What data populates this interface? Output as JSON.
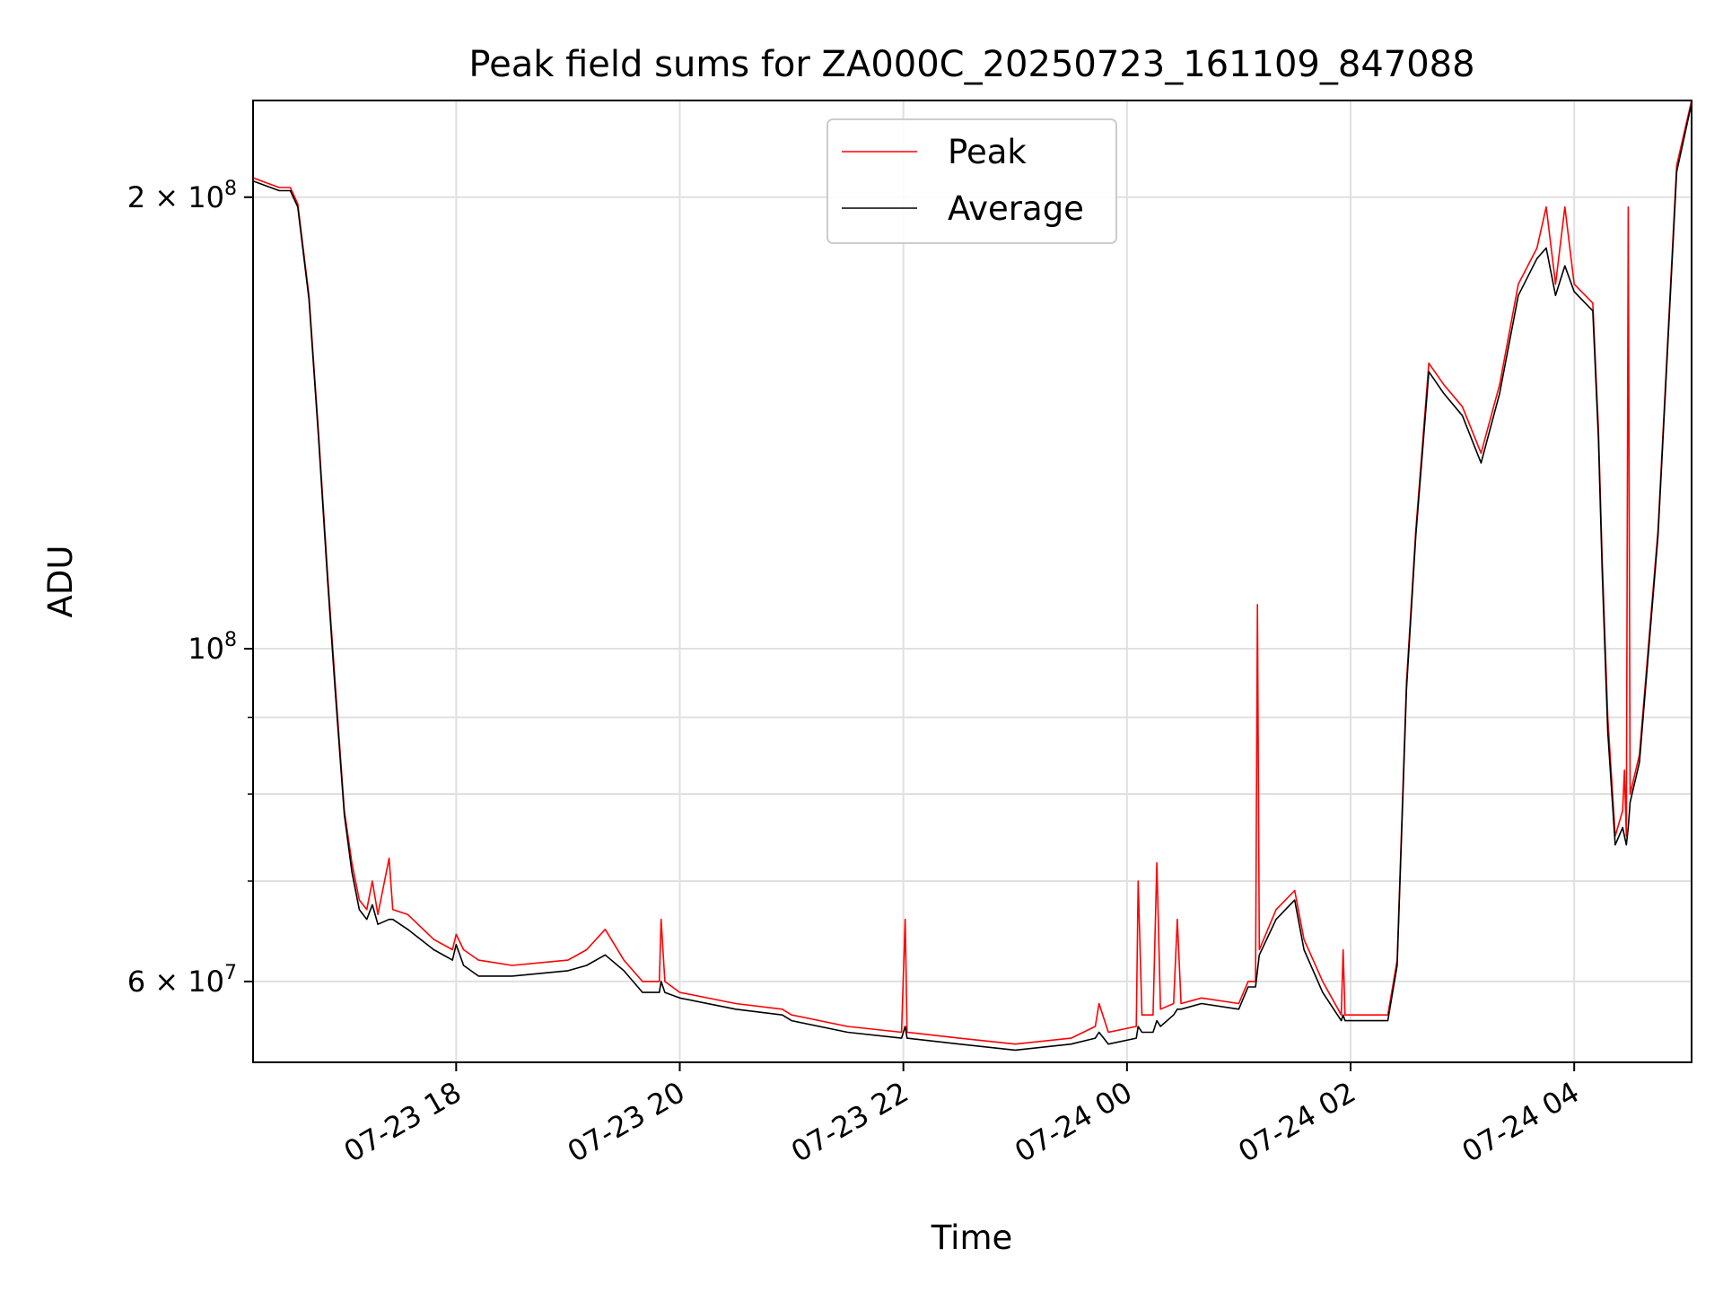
{
  "chart_data": {
    "type": "line",
    "title": "Peak field sums for ZA000C_20250723_161109_847088",
    "xlabel": "Time",
    "ylabel": "ADU",
    "y_scale": "log",
    "grid": true,
    "legend_position": "upper center",
    "xlim": [
      "2025-07-23 16:11",
      "2025-07-24 05:03"
    ],
    "ylim": [
      53000000,
      232000000
    ],
    "x_ticks": [
      {
        "value": "2025-07-23 18:00",
        "label": "07-23 18"
      },
      {
        "value": "2025-07-23 20:00",
        "label": "07-23 20"
      },
      {
        "value": "2025-07-23 22:00",
        "label": "07-23 22"
      },
      {
        "value": "2025-07-24 00:00",
        "label": "07-24 00"
      },
      {
        "value": "2025-07-24 02:00",
        "label": "07-24 02"
      },
      {
        "value": "2025-07-24 04:00",
        "label": "07-24 04"
      }
    ],
    "y_ticks": [
      {
        "value": 60000000,
        "label": "6 × 10",
        "exp": "7"
      },
      {
        "value": 100000000,
        "label": "10",
        "exp": "8"
      },
      {
        "value": 200000000,
        "label": "2 × 10",
        "exp": "8"
      }
    ],
    "y_minor_ticks": [
      70000000,
      80000000,
      90000000
    ],
    "colors": {
      "peak": "#ff0000",
      "average": "#000000",
      "grid": "#e0e0e0"
    },
    "series": [
      {
        "name": "Peak",
        "color": "#ff0000",
        "points": [
          [
            "2025-07-23 16:11",
            206000000
          ],
          [
            "2025-07-23 16:25",
            203000000
          ],
          [
            "2025-07-23 16:31",
            203000000
          ],
          [
            "2025-07-23 16:35",
            198000000
          ],
          [
            "2025-07-23 16:41",
            172000000
          ],
          [
            "2025-07-23 16:46",
            140000000
          ],
          [
            "2025-07-23 16:51",
            112000000
          ],
          [
            "2025-07-23 16:55",
            95000000
          ],
          [
            "2025-07-23 17:00",
            78000000
          ],
          [
            "2025-07-23 17:04",
            72000000
          ],
          [
            "2025-07-23 17:08",
            68000000
          ],
          [
            "2025-07-23 17:12",
            67000000
          ],
          [
            "2025-07-23 17:15",
            70000000
          ],
          [
            "2025-07-23 17:18",
            66500000
          ],
          [
            "2025-07-23 17:24",
            72500000
          ],
          [
            "2025-07-23 17:26",
            67000000
          ],
          [
            "2025-07-23 17:34",
            66500000
          ],
          [
            "2025-07-23 17:48",
            64000000
          ],
          [
            "2025-07-23 17:58",
            63000000
          ],
          [
            "2025-07-23 18:00",
            64500000
          ],
          [
            "2025-07-23 18:04",
            63000000
          ],
          [
            "2025-07-23 18:12",
            62000000
          ],
          [
            "2025-07-23 18:30",
            61500000
          ],
          [
            "2025-07-23 19:00",
            62000000
          ],
          [
            "2025-07-23 19:10",
            63000000
          ],
          [
            "2025-07-23 19:20",
            65000000
          ],
          [
            "2025-07-23 19:30",
            62000000
          ],
          [
            "2025-07-23 19:40",
            60000000
          ],
          [
            "2025-07-23 19:49",
            60000000
          ],
          [
            "2025-07-23 19:50",
            66000000
          ],
          [
            "2025-07-23 19:52",
            60000000
          ],
          [
            "2025-07-23 20:00",
            59000000
          ],
          [
            "2025-07-23 20:30",
            58000000
          ],
          [
            "2025-07-23 20:55",
            57500000
          ],
          [
            "2025-07-23 21:00",
            57000000
          ],
          [
            "2025-07-23 21:30",
            56000000
          ],
          [
            "2025-07-23 21:59",
            55500000
          ],
          [
            "2025-07-23 22:01",
            66000000
          ],
          [
            "2025-07-23 22:02",
            55500000
          ],
          [
            "2025-07-23 22:30",
            55000000
          ],
          [
            "2025-07-23 23:00",
            54500000
          ],
          [
            "2025-07-23 23:30",
            55000000
          ],
          [
            "2025-07-23 23:43",
            56000000
          ],
          [
            "2025-07-23 23:45",
            58000000
          ],
          [
            "2025-07-23 23:50",
            55500000
          ],
          [
            "2025-07-24 00:05",
            56000000
          ],
          [
            "2025-07-24 00:06",
            70000000
          ],
          [
            "2025-07-24 00:08",
            57000000
          ],
          [
            "2025-07-24 00:14",
            57000000
          ],
          [
            "2025-07-24 00:16",
            72000000
          ],
          [
            "2025-07-24 00:18",
            57500000
          ],
          [
            "2025-07-24 00:25",
            58000000
          ],
          [
            "2025-07-24 00:27",
            66000000
          ],
          [
            "2025-07-24 00:29",
            58000000
          ],
          [
            "2025-07-24 00:40",
            58500000
          ],
          [
            "2025-07-24 01:00",
            58000000
          ],
          [
            "2025-07-24 01:05",
            60000000
          ],
          [
            "2025-07-24 01:09",
            60000000
          ],
          [
            "2025-07-24 01:10",
            107000000
          ],
          [
            "2025-07-24 01:11",
            63000000
          ],
          [
            "2025-07-24 01:20",
            67000000
          ],
          [
            "2025-07-24 01:30",
            69000000
          ],
          [
            "2025-07-24 01:35",
            64000000
          ],
          [
            "2025-07-24 01:45",
            60000000
          ],
          [
            "2025-07-24 01:55",
            57000000
          ],
          [
            "2025-07-24 01:56",
            63000000
          ],
          [
            "2025-07-24 01:57",
            57000000
          ],
          [
            "2025-07-24 02:20",
            57000000
          ],
          [
            "2025-07-24 02:25",
            62000000
          ],
          [
            "2025-07-24 02:30",
            95000000
          ],
          [
            "2025-07-24 02:35",
            120000000
          ],
          [
            "2025-07-24 02:42",
            155000000
          ],
          [
            "2025-07-24 02:50",
            150000000
          ],
          [
            "2025-07-24 03:00",
            145000000
          ],
          [
            "2025-07-24 03:10",
            135000000
          ],
          [
            "2025-07-24 03:20",
            150000000
          ],
          [
            "2025-07-24 03:30",
            175000000
          ],
          [
            "2025-07-24 03:40",
            185000000
          ],
          [
            "2025-07-24 03:45",
            197000000
          ],
          [
            "2025-07-24 03:50",
            175000000
          ],
          [
            "2025-07-24 03:55",
            197000000
          ],
          [
            "2025-07-24 04:00",
            175000000
          ],
          [
            "2025-07-24 04:10",
            170000000
          ],
          [
            "2025-07-24 04:13",
            140000000
          ],
          [
            "2025-07-24 04:15",
            115000000
          ],
          [
            "2025-07-24 04:18",
            90000000
          ],
          [
            "2025-07-24 04:22",
            75000000
          ],
          [
            "2025-07-24 04:26",
            78000000
          ],
          [
            "2025-07-24 04:27",
            83000000
          ],
          [
            "2025-07-24 04:28",
            75000000
          ],
          [
            "2025-07-24 04:29",
            197000000
          ],
          [
            "2025-07-24 04:30",
            80000000
          ],
          [
            "2025-07-24 04:35",
            85000000
          ],
          [
            "2025-07-24 04:45",
            120000000
          ],
          [
            "2025-07-24 04:55",
            210000000
          ],
          [
            "2025-07-24 05:03",
            232000000
          ]
        ]
      },
      {
        "name": "Average",
        "color": "#000000",
        "points": [
          [
            "2025-07-23 16:11",
            205000000
          ],
          [
            "2025-07-23 16:25",
            202000000
          ],
          [
            "2025-07-23 16:31",
            202000000
          ],
          [
            "2025-07-23 16:35",
            197000000
          ],
          [
            "2025-07-23 16:41",
            171000000
          ],
          [
            "2025-07-23 16:46",
            139000000
          ],
          [
            "2025-07-23 16:51",
            111000000
          ],
          [
            "2025-07-23 16:55",
            94000000
          ],
          [
            "2025-07-23 17:00",
            77500000
          ],
          [
            "2025-07-23 17:04",
            71000000
          ],
          [
            "2025-07-23 17:08",
            67000000
          ],
          [
            "2025-07-23 17:12",
            66000000
          ],
          [
            "2025-07-23 17:15",
            67500000
          ],
          [
            "2025-07-23 17:18",
            65500000
          ],
          [
            "2025-07-23 17:24",
            66000000
          ],
          [
            "2025-07-23 17:26",
            66000000
          ],
          [
            "2025-07-23 17:34",
            65000000
          ],
          [
            "2025-07-23 17:48",
            63000000
          ],
          [
            "2025-07-23 17:58",
            62000000
          ],
          [
            "2025-07-23 18:00",
            63500000
          ],
          [
            "2025-07-23 18:04",
            61500000
          ],
          [
            "2025-07-23 18:12",
            60500000
          ],
          [
            "2025-07-23 18:30",
            60500000
          ],
          [
            "2025-07-23 19:00",
            61000000
          ],
          [
            "2025-07-23 19:10",
            61500000
          ],
          [
            "2025-07-23 19:20",
            62500000
          ],
          [
            "2025-07-23 19:30",
            61000000
          ],
          [
            "2025-07-23 19:40",
            59000000
          ],
          [
            "2025-07-23 19:49",
            59000000
          ],
          [
            "2025-07-23 19:50",
            60000000
          ],
          [
            "2025-07-23 19:52",
            59000000
          ],
          [
            "2025-07-23 20:00",
            58500000
          ],
          [
            "2025-07-23 20:30",
            57500000
          ],
          [
            "2025-07-23 20:55",
            57000000
          ],
          [
            "2025-07-23 21:00",
            56500000
          ],
          [
            "2025-07-23 21:30",
            55500000
          ],
          [
            "2025-07-23 21:59",
            55000000
          ],
          [
            "2025-07-23 22:01",
            56000000
          ],
          [
            "2025-07-23 22:02",
            55000000
          ],
          [
            "2025-07-23 22:30",
            54500000
          ],
          [
            "2025-07-23 23:00",
            54000000
          ],
          [
            "2025-07-23 23:30",
            54500000
          ],
          [
            "2025-07-23 23:43",
            55000000
          ],
          [
            "2025-07-23 23:45",
            55500000
          ],
          [
            "2025-07-23 23:50",
            54500000
          ],
          [
            "2025-07-24 00:05",
            55000000
          ],
          [
            "2025-07-24 00:06",
            56000000
          ],
          [
            "2025-07-24 00:08",
            55500000
          ],
          [
            "2025-07-24 00:14",
            55500000
          ],
          [
            "2025-07-24 00:16",
            56500000
          ],
          [
            "2025-07-24 00:18",
            56000000
          ],
          [
            "2025-07-24 00:25",
            57000000
          ],
          [
            "2025-07-24 00:27",
            57500000
          ],
          [
            "2025-07-24 00:29",
            57500000
          ],
          [
            "2025-07-24 00:40",
            58000000
          ],
          [
            "2025-07-24 01:00",
            57500000
          ],
          [
            "2025-07-24 01:05",
            59500000
          ],
          [
            "2025-07-24 01:09",
            59500000
          ],
          [
            "2025-07-24 01:10",
            61000000
          ],
          [
            "2025-07-24 01:11",
            62500000
          ],
          [
            "2025-07-24 01:20",
            66000000
          ],
          [
            "2025-07-24 01:30",
            68000000
          ],
          [
            "2025-07-24 01:35",
            63000000
          ],
          [
            "2025-07-24 01:45",
            59000000
          ],
          [
            "2025-07-24 01:55",
            56500000
          ],
          [
            "2025-07-24 01:56",
            57000000
          ],
          [
            "2025-07-24 01:57",
            56500000
          ],
          [
            "2025-07-24 02:20",
            56500000
          ],
          [
            "2025-07-24 02:25",
            61500000
          ],
          [
            "2025-07-24 02:30",
            94000000
          ],
          [
            "2025-07-24 02:35",
            119000000
          ],
          [
            "2025-07-24 02:42",
            153000000
          ],
          [
            "2025-07-24 02:50",
            148000000
          ],
          [
            "2025-07-24 03:00",
            143000000
          ],
          [
            "2025-07-24 03:10",
            133000000
          ],
          [
            "2025-07-24 03:20",
            148000000
          ],
          [
            "2025-07-24 03:30",
            172000000
          ],
          [
            "2025-07-24 03:40",
            182000000
          ],
          [
            "2025-07-24 03:45",
            185000000
          ],
          [
            "2025-07-24 03:50",
            172000000
          ],
          [
            "2025-07-24 03:55",
            180000000
          ],
          [
            "2025-07-24 04:00",
            173000000
          ],
          [
            "2025-07-24 04:10",
            168000000
          ],
          [
            "2025-07-24 04:13",
            138000000
          ],
          [
            "2025-07-24 04:15",
            113000000
          ],
          [
            "2025-07-24 04:18",
            88000000
          ],
          [
            "2025-07-24 04:22",
            74000000
          ],
          [
            "2025-07-24 04:26",
            76000000
          ],
          [
            "2025-07-24 04:27",
            75000000
          ],
          [
            "2025-07-24 04:28",
            74000000
          ],
          [
            "2025-07-24 04:29",
            76000000
          ],
          [
            "2025-07-24 04:30",
            79000000
          ],
          [
            "2025-07-24 04:35",
            84000000
          ],
          [
            "2025-07-24 04:45",
            119000000
          ],
          [
            "2025-07-24 04:55",
            208000000
          ],
          [
            "2025-07-24 05:03",
            231000000
          ]
        ]
      }
    ]
  }
}
